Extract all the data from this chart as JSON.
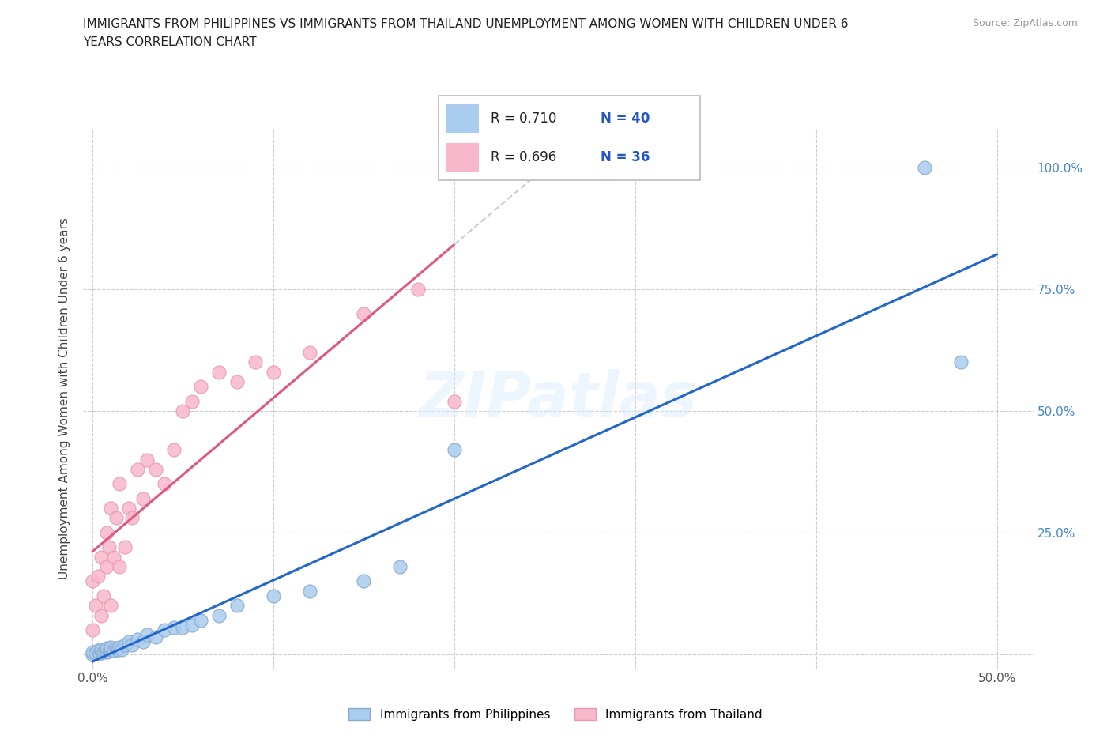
{
  "title_line1": "IMMIGRANTS FROM PHILIPPINES VS IMMIGRANTS FROM THAILAND UNEMPLOYMENT AMONG WOMEN WITH CHILDREN UNDER 6",
  "title_line2": "YEARS CORRELATION CHART",
  "source": "Source: ZipAtlas.com",
  "ylabel": "Unemployment Among Women with Children Under 6 years",
  "xlim": [
    -0.005,
    0.52
  ],
  "ylim": [
    -0.03,
    1.08
  ],
  "xtick_positions": [
    0.0,
    0.1,
    0.2,
    0.3,
    0.4,
    0.5
  ],
  "xtick_labels": [
    "0.0%",
    "",
    "",
    "",
    "",
    "50.0%"
  ],
  "ytick_positions": [
    0.0,
    0.25,
    0.5,
    0.75,
    1.0
  ],
  "ytick_labels_right": [
    "",
    "25.0%",
    "50.0%",
    "75.0%",
    "100.0%"
  ],
  "philippines_color": "#aaccee",
  "philippines_edge": "#88aacc",
  "thailand_color": "#f8b8cc",
  "thailand_edge": "#e898b0",
  "philippines_R": 0.71,
  "philippines_N": 40,
  "thailand_R": 0.696,
  "thailand_N": 36,
  "philippines_line_color": "#2266cc",
  "thailand_line_color": "#e05880",
  "watermark": "ZIPatlas",
  "legend_label_philippines": "Immigrants from Philippines",
  "legend_label_thailand": "Immigrants from Thailand",
  "philippines_x": [
    0.0,
    0.0,
    0.002,
    0.003,
    0.004,
    0.005,
    0.005,
    0.006,
    0.007,
    0.008,
    0.008,
    0.009,
    0.01,
    0.01,
    0.012,
    0.013,
    0.014,
    0.015,
    0.016,
    0.018,
    0.02,
    0.022,
    0.025,
    0.028,
    0.03,
    0.035,
    0.04,
    0.045,
    0.05,
    0.055,
    0.06,
    0.07,
    0.08,
    0.1,
    0.12,
    0.15,
    0.17,
    0.2,
    0.46,
    0.48
  ],
  "philippines_y": [
    0.0,
    0.005,
    0.003,
    0.008,
    0.002,
    0.006,
    0.01,
    0.004,
    0.008,
    0.005,
    0.012,
    0.007,
    0.01,
    0.015,
    0.008,
    0.012,
    0.01,
    0.015,
    0.01,
    0.02,
    0.025,
    0.02,
    0.03,
    0.025,
    0.04,
    0.035,
    0.05,
    0.055,
    0.055,
    0.06,
    0.07,
    0.08,
    0.1,
    0.12,
    0.13,
    0.15,
    0.18,
    0.42,
    1.0,
    0.6
  ],
  "thailand_x": [
    0.0,
    0.0,
    0.002,
    0.003,
    0.005,
    0.005,
    0.006,
    0.008,
    0.008,
    0.009,
    0.01,
    0.01,
    0.012,
    0.013,
    0.015,
    0.015,
    0.018,
    0.02,
    0.022,
    0.025,
    0.028,
    0.03,
    0.035,
    0.04,
    0.045,
    0.05,
    0.055,
    0.06,
    0.07,
    0.08,
    0.09,
    0.1,
    0.12,
    0.15,
    0.18,
    0.2
  ],
  "thailand_y": [
    0.05,
    0.15,
    0.1,
    0.16,
    0.08,
    0.2,
    0.12,
    0.18,
    0.25,
    0.22,
    0.1,
    0.3,
    0.2,
    0.28,
    0.18,
    0.35,
    0.22,
    0.3,
    0.28,
    0.38,
    0.32,
    0.4,
    0.38,
    0.35,
    0.42,
    0.5,
    0.52,
    0.55,
    0.58,
    0.56,
    0.6,
    0.58,
    0.62,
    0.7,
    0.75,
    0.52
  ]
}
